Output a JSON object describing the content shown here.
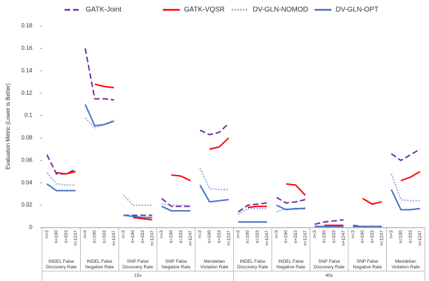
{
  "chart_data": {
    "type": "line",
    "ylabel": "Evaluation Metric (Lower is Better)",
    "categories": [
      "n=3",
      "n=100",
      "n=333",
      "n=1247",
      "n=3",
      "n=100",
      "n=333",
      "n=1247",
      "n=3",
      "n=100",
      "n=333",
      "n=1247",
      "n=3",
      "n=100",
      "n=333",
      "n=1247",
      "n=3",
      "n=100",
      "n=333",
      "n=1247",
      "n=3",
      "n=100",
      "n=333",
      "n=1247",
      "n=3",
      "n=100",
      "n=333",
      "n=1247",
      "n=3",
      "n=100",
      "n=333",
      "n=1247",
      "n=3",
      "n=100",
      "n=333",
      "n=1247",
      "n=3",
      "n=100",
      "n=333",
      "n=1247"
    ],
    "groups": [
      "INDEL False Discovery Rate",
      "INDEL False Negative Rate",
      "SNP False Discovery Rate",
      "SNP False Negative Rate",
      "Mendelian Violation Rate",
      "INDEL False Discovery Rate",
      "INDEL False Negative Rate",
      "SNP False Discovery Rate",
      "SNP False Negative Rate",
      "Mendelian Violation Rate"
    ],
    "supergroups": [
      "15x",
      "40x"
    ],
    "series": [
      {
        "name": "GATK-Joint",
        "color": "#7030a0",
        "dash": "dashed",
        "values": [
          0.065,
          0.048,
          0.048,
          0.052,
          0.16,
          0.115,
          0.115,
          0.114,
          0.011,
          0.011,
          0.011,
          0.011,
          0.026,
          0.019,
          0.019,
          0.019,
          0.087,
          0.083,
          0.085,
          0.093,
          0.014,
          0.02,
          0.021,
          0.022,
          0.027,
          0.022,
          0.023,
          0.025,
          0.003,
          0.005,
          0.006,
          0.007,
          0.002,
          0.001,
          0.001,
          0.001,
          0.066,
          0.06,
          0.065,
          0.07
        ]
      },
      {
        "name": "GATK-VQSR",
        "color": "#ff0000",
        "dash": "solid",
        "values": [
          null,
          0.049,
          0.048,
          0.05,
          null,
          0.128,
          0.126,
          0.125,
          null,
          0.009,
          0.008,
          0.007,
          null,
          0.047,
          0.046,
          0.042,
          null,
          0.07,
          0.072,
          0.08,
          null,
          0.018,
          0.019,
          0.019,
          null,
          0.039,
          0.038,
          0.029,
          null,
          0.002,
          0.002,
          0.002,
          null,
          0.026,
          0.021,
          0.023,
          null,
          0.042,
          0.045,
          0.05
        ]
      },
      {
        "name": "DV-GLN-NOMOD",
        "color": "#8faadc",
        "dash": "dotted",
        "values": [
          0.049,
          0.039,
          0.038,
          0.038,
          0.098,
          0.089,
          0.092,
          0.096,
          0.029,
          0.02,
          0.02,
          0.02,
          0.021,
          0.02,
          0.02,
          0.02,
          0.053,
          0.035,
          0.034,
          0.034,
          0.012,
          0.017,
          0.017,
          0.017,
          0.014,
          0.017,
          0.016,
          0.018,
          0.001,
          0.001,
          0.001,
          0.001,
          0.001,
          0.001,
          0.001,
          0.001,
          0.048,
          0.025,
          0.024,
          0.024
        ]
      },
      {
        "name": "DV-GLN-OPT",
        "color": "#4472c4",
        "dash": "solid",
        "values": [
          0.039,
          0.033,
          0.033,
          0.033,
          0.11,
          0.091,
          0.092,
          0.095,
          0.011,
          0.01,
          0.009,
          0.009,
          0.019,
          0.015,
          0.015,
          0.015,
          0.038,
          0.023,
          0.024,
          0.025,
          0.005,
          0.005,
          0.005,
          0.005,
          0.02,
          0.016,
          0.017,
          0.017,
          0.001,
          0.001,
          0.001,
          0.001,
          0.001,
          0.001,
          0.001,
          0.001,
          0.034,
          0.016,
          0.016,
          0.017
        ]
      }
    ],
    "ylim": [
      0,
      0.18
    ],
    "yticks": [
      0,
      0.02,
      0.04,
      0.06,
      0.08,
      0.1,
      0.12,
      0.14,
      0.16,
      0.18
    ],
    "grid": false,
    "legend": "top"
  }
}
